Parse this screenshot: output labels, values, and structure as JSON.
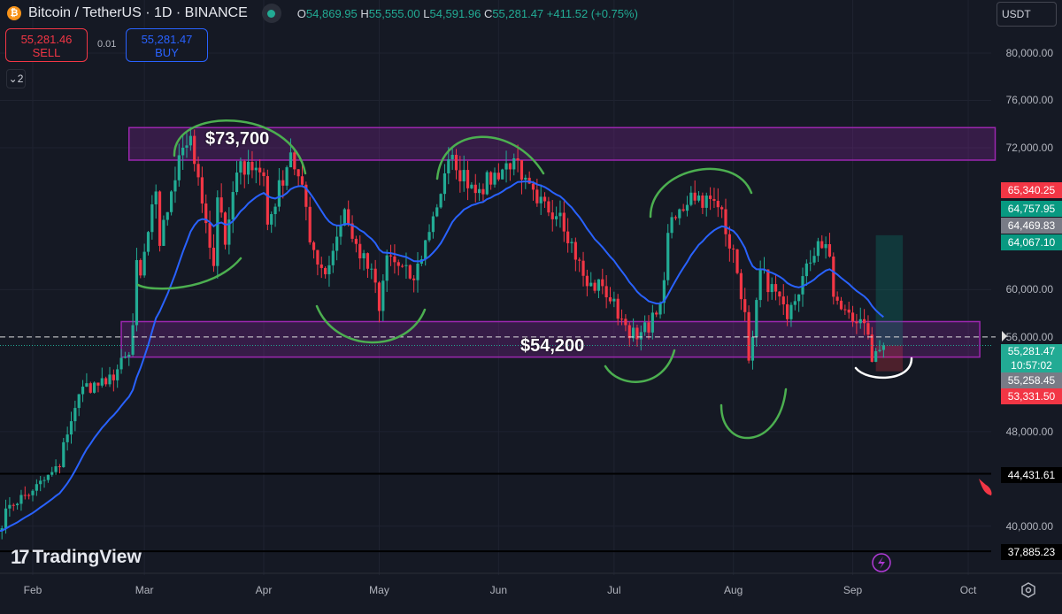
{
  "header": {
    "title": "Bitcoin / TetherUS · 1D · BINANCE",
    "open_label": "O",
    "open": "54,869.95",
    "high_label": "H",
    "high": "55,555.00",
    "low_label": "L",
    "low": "54,591.96",
    "close_label": "C",
    "close": "55,281.47",
    "change": "+411.52 (+0.75%)"
  },
  "trade": {
    "sell_price": "55,281.46",
    "sell_label": "SELL",
    "spread": "0.01",
    "buy_price": "55,281.47",
    "buy_label": "BUY"
  },
  "collapse": {
    "label": "2"
  },
  "currency": {
    "selected": "USDT"
  },
  "logo": {
    "text": "TradingView"
  },
  "annotations": {
    "top": "$73,700",
    "bottom": "$54,200"
  },
  "colors": {
    "up": "#22ab94",
    "down": "#f23645",
    "ma": "#2962ff",
    "zone": "#9c27b0",
    "drawing": "#4caf50",
    "background": "#151924"
  },
  "price_tags": [
    {
      "text": "65,340.25",
      "color": "#f23645",
      "value": 65340.25
    },
    {
      "text": "64,757.95",
      "color": "#089981",
      "value": 64757.95
    },
    {
      "text": "64,469.83",
      "color": "#787b86",
      "value": 64469.83
    },
    {
      "text": "64,067.10",
      "color": "#089981",
      "value": 64067.1
    },
    {
      "text": "55,281.47",
      "sub": "10:57:02",
      "color": "#22ab94",
      "value": 55281.47
    },
    {
      "text": "55,258.45",
      "color": "#787b86",
      "value": 55258.45
    },
    {
      "text": "53,331.50",
      "color": "#f23645",
      "value": 53331.5
    },
    {
      "text": "44,431.61",
      "color": "#000000",
      "value": 44431.61
    },
    {
      "text": "37,885.23",
      "color": "#000000",
      "value": 37885.23
    }
  ],
  "chart_data": {
    "type": "candlestick",
    "symbol": "BTCUSDT",
    "interval": "1D",
    "ylim": [
      35500,
      84000
    ],
    "y_ticks": [
      {
        "v": 80000,
        "t": "80,000.00"
      },
      {
        "v": 76000,
        "t": "76,000.00"
      },
      {
        "v": 72000,
        "t": "72,000.00"
      },
      {
        "v": 60000,
        "t": "60,000.00"
      },
      {
        "v": 56000,
        "t": "56,000.00"
      },
      {
        "v": 48000,
        "t": "48,000.00"
      },
      {
        "v": 40000,
        "t": "40,000.00"
      }
    ],
    "x_ticks": [
      {
        "d": "2024-02-01",
        "t": "Feb"
      },
      {
        "d": "2024-03-01",
        "t": "Mar"
      },
      {
        "d": "2024-04-01",
        "t": "Apr"
      },
      {
        "d": "2024-05-01",
        "t": "May"
      },
      {
        "d": "2024-06-01",
        "t": "Jun"
      },
      {
        "d": "2024-07-01",
        "t": "Jul"
      },
      {
        "d": "2024-08-01",
        "t": "Aug"
      },
      {
        "d": "2024-09-01",
        "t": "Sep"
      },
      {
        "d": "2024-10-01",
        "t": "Oct"
      }
    ],
    "key_closes": [
      [
        "2024-01-23",
        39600
      ],
      [
        "2024-01-26",
        41800
      ],
      [
        "2024-02-01",
        43000
      ],
      [
        "2024-02-08",
        45000
      ],
      [
        "2024-02-09",
        47100
      ],
      [
        "2024-02-12",
        50000
      ],
      [
        "2024-02-14",
        51800
      ],
      [
        "2024-02-20",
        52000
      ],
      [
        "2024-02-26",
        54500
      ],
      [
        "2024-02-27",
        57000
      ],
      [
        "2024-02-28",
        62500
      ],
      [
        "2024-02-29",
        61200
      ],
      [
        "2024-03-04",
        68300
      ],
      [
        "2024-03-05",
        63700
      ],
      [
        "2024-03-08",
        68300
      ],
      [
        "2024-03-11",
        72000
      ],
      [
        "2024-03-13",
        73000
      ],
      [
        "2024-03-15",
        69500
      ],
      [
        "2024-03-19",
        62000
      ],
      [
        "2024-03-20",
        67800
      ],
      [
        "2024-03-22",
        63800
      ],
      [
        "2024-03-25",
        69900
      ],
      [
        "2024-03-28",
        70800
      ],
      [
        "2024-04-01",
        69600
      ],
      [
        "2024-04-02",
        65500
      ],
      [
        "2024-04-08",
        71600
      ],
      [
        "2024-04-12",
        67000
      ],
      [
        "2024-04-13",
        64000
      ],
      [
        "2024-04-17",
        61300
      ],
      [
        "2024-04-22",
        66800
      ],
      [
        "2024-04-24",
        64300
      ],
      [
        "2024-04-30",
        60600
      ],
      [
        "2024-05-01",
        58200
      ],
      [
        "2024-05-03",
        62900
      ],
      [
        "2024-05-10",
        60800
      ],
      [
        "2024-05-15",
        66200
      ],
      [
        "2024-05-20",
        71400
      ],
      [
        "2024-05-21",
        70100
      ],
      [
        "2024-05-27",
        68500
      ],
      [
        "2024-06-05",
        71100
      ],
      [
        "2024-06-07",
        69300
      ],
      [
        "2024-06-11",
        67300
      ],
      [
        "2024-06-17",
        66500
      ],
      [
        "2024-06-24",
        60300
      ],
      [
        "2024-06-28",
        60300
      ],
      [
        "2024-07-04",
        57000
      ],
      [
        "2024-07-07",
        55800
      ],
      [
        "2024-07-12",
        57900
      ],
      [
        "2024-07-14",
        60800
      ],
      [
        "2024-07-15",
        64800
      ],
      [
        "2024-07-21",
        68200
      ],
      [
        "2024-07-29",
        66800
      ],
      [
        "2024-08-02",
        61400
      ],
      [
        "2024-08-04",
        58100
      ],
      [
        "2024-08-05",
        54000
      ],
      [
        "2024-08-06",
        56000
      ],
      [
        "2024-08-08",
        61700
      ],
      [
        "2024-08-15",
        57500
      ],
      [
        "2024-08-23",
        64100
      ],
      [
        "2024-08-26",
        62800
      ],
      [
        "2024-08-27",
        59400
      ],
      [
        "2024-09-01",
        57300
      ],
      [
        "2024-09-03",
        57500
      ],
      [
        "2024-09-05",
        56200
      ],
      [
        "2024-09-06",
        53900
      ],
      [
        "2024-09-07",
        54800
      ],
      [
        "2024-09-08",
        54900
      ],
      [
        "2024-09-09",
        55281.47
      ]
    ],
    "moving_average": {
      "type": "EMA",
      "length": 20
    },
    "zones": [
      {
        "from": 70950,
        "to": 73700,
        "start": "2024-02-26",
        "end": "2024-10-08"
      },
      {
        "from": 54300,
        "to": 57300,
        "start": "2024-02-24",
        "end": "2024-10-04"
      }
    ],
    "horizontal_lines": [
      44431.61,
      37885.23
    ],
    "position": {
      "type": "long",
      "entry": 55281.47,
      "target": 64600,
      "stop": 53100,
      "start": "2024-09-07",
      "end": "2024-09-14"
    },
    "current_price": 55281.47
  }
}
